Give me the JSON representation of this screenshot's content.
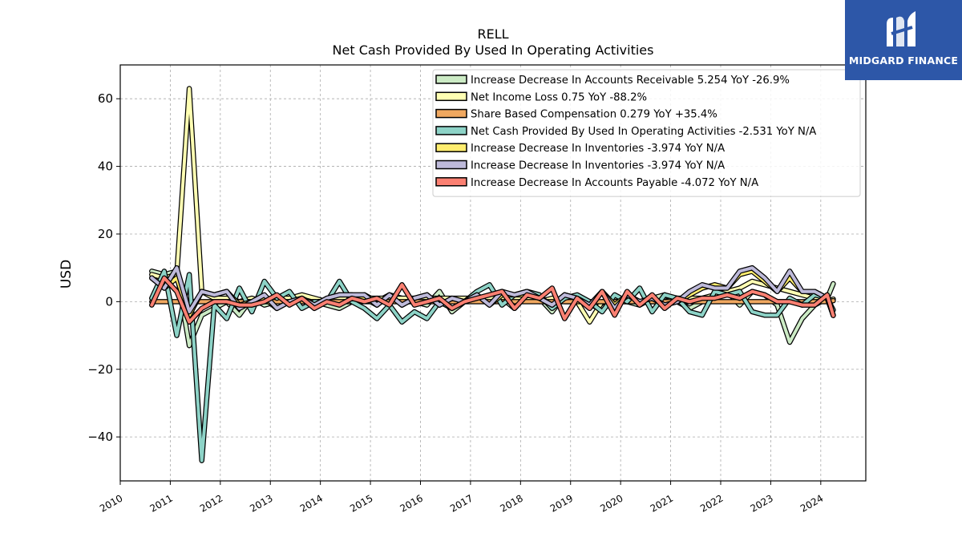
{
  "logo": {
    "text": "MIDGARD FINANCE"
  },
  "chart_data": {
    "type": "line",
    "title": "RELL",
    "subtitle": "Net Cash Provided By Used In Operating Activities",
    "xlabel": "",
    "ylabel": "USD",
    "xlim": [
      2010.0,
      2024.9
    ],
    "ylim": [
      -53,
      70
    ],
    "x_ticks": [
      2010,
      2011,
      2012,
      2013,
      2014,
      2015,
      2016,
      2017,
      2018,
      2019,
      2020,
      2021,
      2022,
      2023,
      2024
    ],
    "x_tick_labels": [
      "2010",
      "2011",
      "2012",
      "2013",
      "2014",
      "2015",
      "2016",
      "2017",
      "2018",
      "2019",
      "2020",
      "2021",
      "2022",
      "2023",
      "2024"
    ],
    "y_ticks": [
      -40,
      -20,
      0,
      20,
      40,
      60
    ],
    "y_tick_labels": [
      "−40",
      "−20",
      "0",
      "20",
      "40",
      "60"
    ],
    "grid": true,
    "legend_position": "top-right",
    "x": [
      2010.63,
      2010.88,
      2011.13,
      2011.38,
      2011.63,
      2011.88,
      2012.13,
      2012.38,
      2012.63,
      2012.88,
      2013.13,
      2013.38,
      2013.63,
      2013.88,
      2014.13,
      2014.38,
      2014.63,
      2014.88,
      2015.13,
      2015.38,
      2015.63,
      2015.88,
      2016.13,
      2016.38,
      2016.63,
      2016.88,
      2017.13,
      2017.38,
      2017.63,
      2017.88,
      2018.13,
      2018.38,
      2018.63,
      2018.88,
      2019.13,
      2019.38,
      2019.63,
      2019.88,
      2020.13,
      2020.38,
      2020.63,
      2020.88,
      2021.13,
      2021.38,
      2021.63,
      2021.88,
      2022.13,
      2022.38,
      2022.63,
      2022.88,
      2023.13,
      2023.38,
      2023.63,
      2023.88,
      2024.13,
      2024.25
    ],
    "series": [
      {
        "name": "Increase Decrease In Accounts Receivable  5.254 YoY -26.9%",
        "color": "#ccebc5",
        "values": [
          9,
          8,
          9,
          -13,
          -4,
          -2,
          0,
          -4,
          1,
          -1,
          0,
          1,
          0,
          0,
          -1,
          -2,
          0,
          2,
          0,
          2,
          1,
          0,
          -1,
          3,
          -3,
          0,
          1,
          1,
          1,
          -2,
          2,
          1,
          -3,
          2,
          1,
          -1,
          -2,
          1,
          0,
          -1,
          1,
          2,
          0,
          -2,
          0,
          1,
          3,
          -1,
          3,
          2,
          -1,
          -12,
          -5,
          -1,
          1,
          5.3
        ]
      },
      {
        "name": "Net Income Loss  0.75 YoY -88.2%",
        "color": "#ffffb3",
        "values": [
          8,
          7,
          8,
          63,
          3,
          1,
          1,
          0,
          1,
          0,
          1,
          1,
          2,
          1,
          0,
          1,
          1,
          1,
          1,
          1,
          1,
          1,
          1,
          1,
          1,
          1,
          1,
          1,
          1,
          1,
          1,
          0,
          1,
          0,
          0,
          -6,
          0,
          0,
          0,
          0,
          0,
          0,
          1,
          1,
          1,
          2,
          3,
          4,
          6,
          5,
          4,
          3,
          2,
          1,
          0,
          0.75
        ]
      },
      {
        "name": "Share Based Compensation  0.279 YoY +35.4%",
        "color": "#f0a860",
        "values": [
          0,
          0,
          0,
          0,
          0,
          0,
          0,
          0,
          0,
          0,
          0,
          0,
          0,
          0,
          0,
          0,
          0,
          0,
          0,
          0,
          0,
          0,
          0,
          0,
          0,
          0,
          0,
          0,
          0,
          0,
          0,
          0,
          0,
          0,
          0,
          0,
          0,
          0,
          0,
          0,
          0,
          0,
          0,
          0,
          0,
          0,
          0,
          0,
          0,
          0,
          0,
          0,
          0,
          0,
          0,
          0.28
        ]
      },
      {
        "name": "Net Cash Provided By Used In Operating Activities  -2.531 YoY N/A",
        "color": "#8dd3c7",
        "values": [
          1,
          9,
          -10,
          8,
          -47,
          -1,
          -5,
          4,
          -3,
          6,
          1,
          3,
          -2,
          0,
          0,
          6,
          0,
          -2,
          -5,
          -1,
          -6,
          -3,
          -5,
          0,
          -2,
          0,
          3,
          5,
          -1,
          2,
          3,
          2,
          -2,
          1,
          2,
          0,
          -3,
          2,
          0,
          4,
          -3,
          2,
          1,
          -3,
          -4,
          3,
          2,
          3,
          -3,
          -4,
          -4,
          1,
          -1,
          2,
          1,
          -2.5
        ]
      },
      {
        "name": "Increase Decrease In Inventories  -3.974 YoY N/A",
        "color": "#ffed6f",
        "values": [
          7,
          4,
          7,
          -4,
          3,
          2,
          3,
          -1,
          0,
          1,
          -2,
          0,
          1,
          -1,
          1,
          2,
          2,
          1,
          -1,
          2,
          -1,
          1,
          2,
          -1,
          1,
          0,
          2,
          -1,
          2,
          2,
          2,
          1,
          -1,
          2,
          1,
          -1,
          3,
          -1,
          2,
          0,
          1,
          -1,
          0,
          2,
          4,
          5,
          4,
          8,
          9,
          6,
          3,
          7,
          3,
          3,
          1,
          -4
        ]
      },
      {
        "name": "Increase Decrease In Inventories  -3.974 YoY N/A",
        "color": "#bebada",
        "values": [
          7,
          4,
          10,
          -3,
          3,
          2,
          3,
          -2,
          0,
          2,
          -2,
          0,
          1,
          -1,
          1,
          2,
          2,
          2,
          -1,
          2,
          -1,
          1,
          2,
          -1,
          1,
          0,
          2,
          -1,
          3,
          2,
          3,
          1,
          -1,
          2,
          1,
          -1,
          3,
          -2,
          2,
          0,
          1,
          -1,
          0,
          3,
          5,
          4,
          4,
          9,
          10,
          7,
          3,
          9,
          3,
          3,
          1,
          -4
        ]
      },
      {
        "name": "Increase Decrease In Accounts Payable  -4.072 YoY N/A",
        "color": "#fb8072",
        "values": [
          -1,
          7,
          3,
          -6,
          -2,
          0,
          0,
          -1,
          -1,
          0,
          2,
          -1,
          1,
          -2,
          0,
          -1,
          1,
          0,
          1,
          -1,
          5,
          -1,
          0,
          1,
          -2,
          0,
          1,
          2,
          3,
          -2,
          2,
          1,
          4,
          -5,
          1,
          -2,
          3,
          -4,
          3,
          -1,
          2,
          -2,
          1,
          0,
          1,
          1,
          2,
          1,
          3,
          2,
          0,
          0,
          -1,
          -1,
          2,
          -4.1
        ]
      }
    ]
  }
}
